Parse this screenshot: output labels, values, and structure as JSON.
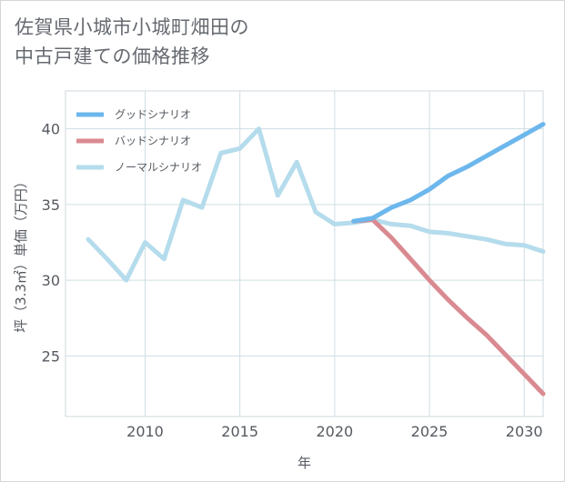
{
  "title": {
    "line1": "佐賀県小城市小城町畑田の",
    "line2": "中古戸建ての価格推移"
  },
  "chart_data": {
    "type": "line",
    "title": "佐賀県小城市小城町畑田の中古戸建ての価格推移",
    "xlabel": "年",
    "ylabel": "坪（3.3㎡）単価（万円）",
    "xlim": [
      2005.8,
      2031
    ],
    "ylim": [
      21,
      42.5
    ],
    "xticks": [
      2010,
      2015,
      2020,
      2025,
      2030
    ],
    "yticks": [
      25,
      30,
      35,
      40
    ],
    "grid": true,
    "legend_position": "top-left",
    "series": [
      {
        "name": "グッドシナリオ",
        "color": "#6cb7ec",
        "x": [
          2021,
          2022,
          2023,
          2024,
          2025,
          2026,
          2027,
          2028,
          2029,
          2030,
          2031
        ],
        "y": [
          33.9,
          34.1,
          34.8,
          35.3,
          36.0,
          36.9,
          37.5,
          38.2,
          38.9,
          39.6,
          40.3
        ]
      },
      {
        "name": "バッドシナリオ",
        "color": "#d98a90",
        "x": [
          2021,
          2022,
          2023,
          2024,
          2025,
          2026,
          2027,
          2028,
          2029,
          2030,
          2031
        ],
        "y": [
          33.9,
          34.0,
          32.8,
          31.4,
          30.0,
          28.7,
          27.5,
          26.4,
          25.1,
          23.8,
          22.5
        ]
      },
      {
        "name": "ノーマルシナリオ",
        "color": "#b5dcec",
        "x": [
          2007,
          2008,
          2009,
          2010,
          2011,
          2012,
          2013,
          2014,
          2015,
          2016,
          2017,
          2018,
          2019,
          2020,
          2021,
          2022,
          2023,
          2024,
          2025,
          2026,
          2027,
          2028,
          2029,
          2030,
          2031
        ],
        "y": [
          32.7,
          31.4,
          30.0,
          32.5,
          31.4,
          35.3,
          34.8,
          38.4,
          38.7,
          40.0,
          35.6,
          37.8,
          34.5,
          33.7,
          33.8,
          34.0,
          33.7,
          33.6,
          33.2,
          33.1,
          32.9,
          32.7,
          32.4,
          32.3,
          31.9
        ]
      }
    ]
  }
}
